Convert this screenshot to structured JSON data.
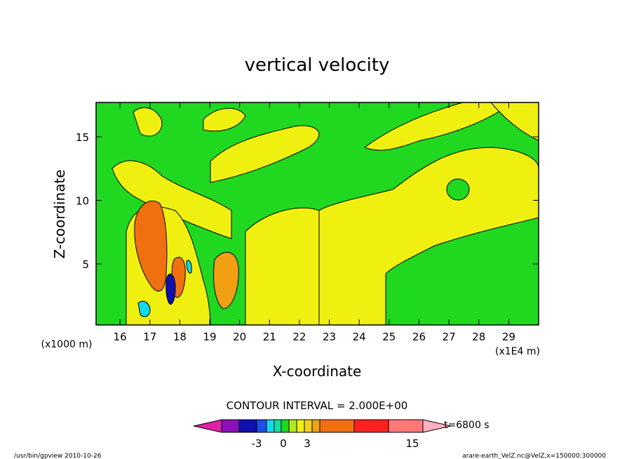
{
  "chart_data": {
    "type": "heatmap",
    "title": "vertical velocity",
    "xlabel": "X-coordinate",
    "ylabel": "Z-coordinate",
    "x_scale_label": "(x1E4 m)",
    "y_scale_label": "(x1000 m)",
    "xlim": [
      15.2,
      30.0
    ],
    "ylim": [
      0.2,
      17.7
    ],
    "x_ticks": [
      16,
      17,
      18,
      19,
      20,
      21,
      22,
      23,
      24,
      25,
      26,
      27,
      28,
      29
    ],
    "y_ticks": [
      5,
      10,
      15
    ],
    "contour_interval_label": "CONTOUR INTERVAL = 2.000E+00",
    "time_label": "t=6800 s",
    "colorbar": {
      "levels": [
        -3,
        0,
        3,
        15
      ],
      "colors": [
        "#e020a8",
        "#8a10b8",
        "#1010b0",
        "#1a50e8",
        "#10d8ee",
        "#10e0a0",
        "#20d820",
        "#b0e820",
        "#f0f010",
        "#f0d020",
        "#f0a010",
        "#f07010",
        "#ff2020",
        "#ff7878",
        "#ffb0c0"
      ]
    },
    "background_color": "#20d820",
    "positive_color": "#f0f010",
    "strong_color": "#f07010",
    "footer_left": "/usr/bin/gpview   2010-10-26",
    "footer_right": "arare-earth_VelZ.nc@VelZ,x=150000:300000"
  }
}
